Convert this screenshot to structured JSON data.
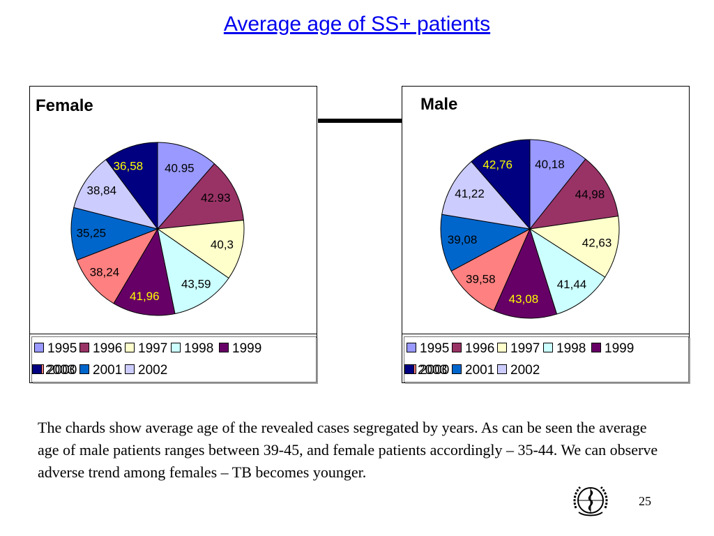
{
  "slide": {
    "title": "Average age of SS+ patients",
    "body": "The chards show average age of the revealed cases segregated by years. As can be seen the average age of male patients ranges between 39-45, and female patients accordingly – 35-44. We can observe adverse trend among females – TB becomes younger.",
    "page_number": "25",
    "logo_icon": "who-emblem-icon"
  },
  "colors": {
    "1995": "#9999ff",
    "1996": "#993366",
    "1997": "#ffffcc",
    "1998": "#ccffff",
    "1999": "#660066",
    "2000": "#ff8080",
    "2001": "#0066cc",
    "2002": "#ccccff",
    "2003": "#000080"
  },
  "chart_data": [
    {
      "type": "pie",
      "title": "Female",
      "categories": [
        "1995",
        "1996",
        "1997",
        "1998",
        "1999",
        "2000",
        "2001",
        "2002",
        "2003"
      ],
      "values": [
        40.95,
        42.93,
        40.3,
        43.59,
        41.96,
        38.24,
        35.25,
        38.84,
        36.58
      ],
      "labels": [
        "40.95",
        "42.93",
        "40,3",
        "43,59",
        "41,96",
        "38,24",
        "35,25",
        "38,84",
        "36,58"
      ],
      "label_colors": [
        "#000000",
        "#000000",
        "#000000",
        "#000000",
        "#ffff00",
        "#000000",
        "#000000",
        "#000000",
        "#ffff00"
      ],
      "legend": [
        "1995",
        "1996",
        "1997",
        "1998",
        "1999",
        "2000",
        "2001",
        "2002",
        "2003"
      ],
      "legend_placement": "bottom"
    },
    {
      "type": "pie",
      "title": "Male",
      "categories": [
        "1995",
        "1996",
        "1997",
        "1998",
        "1999",
        "2000",
        "2001",
        "2002",
        "2003"
      ],
      "values": [
        40.18,
        44.98,
        42.63,
        41.44,
        43.08,
        39.58,
        39.08,
        41.22,
        42.76
      ],
      "labels": [
        "40,18",
        "44,98",
        "42,63",
        "41,44",
        "43,08",
        "39,58",
        "39,08",
        "41,22",
        "42,76"
      ],
      "label_colors": [
        "#000000",
        "#000000",
        "#000000",
        "#000000",
        "#ffff00",
        "#000000",
        "#000000",
        "#000000",
        "#ffff00"
      ],
      "legend": [
        "1995",
        "1996",
        "1997",
        "1998",
        "1999",
        "2000",
        "2001",
        "2002",
        "2003"
      ],
      "legend_placement": "bottom"
    }
  ]
}
